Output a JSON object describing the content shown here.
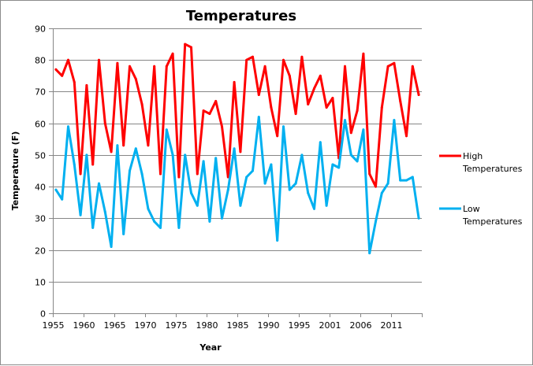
{
  "chart_data": {
    "type": "line",
    "title": "Temperatures",
    "xlabel": "Year",
    "ylabel": "Temperature (F)",
    "ylim": [
      0,
      90
    ],
    "yticks": [
      0,
      10,
      20,
      30,
      40,
      50,
      60,
      70,
      80,
      90
    ],
    "grid": true,
    "legend_position": "right",
    "x_tick_labels": [
      "1955",
      "1960",
      "1965",
      "1970",
      "1975",
      "1980",
      "1985",
      "1990",
      "1995",
      "2001",
      "2006",
      "2011",
      ""
    ],
    "x_label_every": 5,
    "num_categories": 60,
    "series": [
      {
        "name": "High Temperatures",
        "legend_lines": [
          "High",
          "Temperatures"
        ],
        "color": "#ff0000",
        "values": [
          77,
          75,
          80,
          73,
          44,
          72,
          47,
          80,
          60,
          51,
          79,
          53,
          78,
          74,
          66,
          53,
          78,
          44,
          78,
          82,
          43,
          85,
          84,
          44,
          64,
          63,
          67,
          59,
          43,
          73,
          51,
          80,
          81,
          69,
          78,
          65,
          56,
          80,
          75,
          63,
          81,
          66,
          71,
          75,
          65,
          68,
          49,
          78,
          57,
          64,
          82,
          44,
          40,
          65,
          78,
          79,
          67,
          56,
          78,
          69
        ]
      },
      {
        "name": "Low Temperatures",
        "legend_lines": [
          "Low",
          "Temperatures"
        ],
        "color": "#00b0f0",
        "values": [
          39,
          36,
          59,
          47,
          31,
          50,
          27,
          41,
          32,
          21,
          53,
          25,
          45,
          52,
          44,
          33,
          29,
          27,
          58,
          50,
          27,
          50,
          38,
          34,
          48,
          29,
          49,
          30,
          39,
          52,
          34,
          43,
          45,
          62,
          41,
          47,
          23,
          59,
          39,
          41,
          50,
          38,
          33,
          54,
          34,
          47,
          46,
          61,
          50,
          48,
          58,
          19,
          29,
          38,
          41,
          61,
          42,
          42,
          43,
          30
        ]
      }
    ]
  }
}
